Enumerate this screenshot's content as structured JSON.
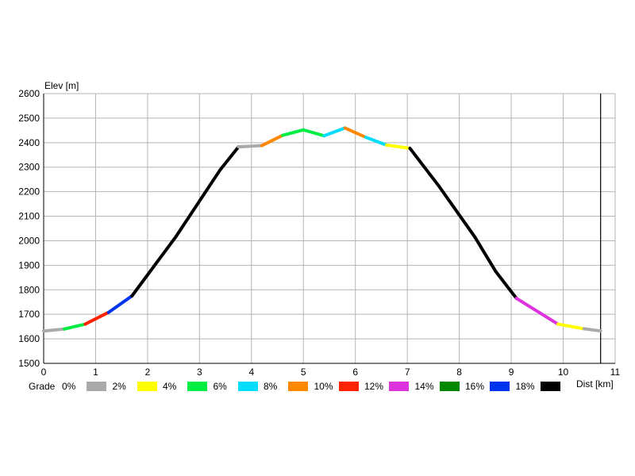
{
  "chart_data": {
    "type": "line",
    "ylabel": "Elev [m]",
    "xlabel": "Dist [km]",
    "xlim": [
      0,
      11
    ],
    "ylim": [
      1500,
      2600
    ],
    "xticks": [
      "0",
      "1",
      "2",
      "3",
      "4",
      "5",
      "6",
      "7",
      "8",
      "9",
      "10",
      "11"
    ],
    "yticks": [
      "1500",
      "1600",
      "1700",
      "1800",
      "1900",
      "2000",
      "2100",
      "2200",
      "2300",
      "2400",
      "2500",
      "2600"
    ],
    "grid": true,
    "marker_x": 10.72,
    "legend_title": "Grade",
    "grades": [
      {
        "label": "0%",
        "color": "#aaaaaa"
      },
      {
        "label": "2%",
        "color": "#ffff00"
      },
      {
        "label": "4%",
        "color": "#00ee44"
      },
      {
        "label": "6%",
        "color": "#00ddff"
      },
      {
        "label": "8%",
        "color": "#ff8800"
      },
      {
        "label": "10%",
        "color": "#ff2200"
      },
      {
        "label": "12%",
        "color": "#dd33dd"
      },
      {
        "label": "14%",
        "color": "#008800"
      },
      {
        "label": "16%",
        "color": "#0033ee"
      },
      {
        "label": "18%",
        "color": "#000000"
      }
    ],
    "segments": [
      {
        "x0": 0.0,
        "y0": 1632,
        "x1": 0.4,
        "y1": 1640,
        "color": "#aaaaaa"
      },
      {
        "x0": 0.4,
        "y0": 1640,
        "x1": 0.8,
        "y1": 1660,
        "color": "#00ee44"
      },
      {
        "x0": 0.8,
        "y0": 1660,
        "x1": 1.25,
        "y1": 1708,
        "color": "#ff2200"
      },
      {
        "x0": 1.25,
        "y0": 1708,
        "x1": 1.7,
        "y1": 1775,
        "color": "#0033ee"
      },
      {
        "x0": 1.7,
        "y0": 1775,
        "x1": 2.55,
        "y1": 2018,
        "color": "#000000"
      },
      {
        "x0": 2.55,
        "y0": 2018,
        "x1": 3.4,
        "y1": 2290,
        "color": "#000000"
      },
      {
        "x0": 3.4,
        "y0": 2290,
        "x1": 3.75,
        "y1": 2383,
        "color": "#000000"
      },
      {
        "x0": 3.75,
        "y0": 2383,
        "x1": 4.2,
        "y1": 2388,
        "color": "#aaaaaa"
      },
      {
        "x0": 4.2,
        "y0": 2388,
        "x1": 4.6,
        "y1": 2430,
        "color": "#ff8800"
      },
      {
        "x0": 4.6,
        "y0": 2430,
        "x1": 5.0,
        "y1": 2452,
        "color": "#00ee44"
      },
      {
        "x0": 5.0,
        "y0": 2452,
        "x1": 5.4,
        "y1": 2428,
        "color": "#00ee44"
      },
      {
        "x0": 5.4,
        "y0": 2428,
        "x1": 5.8,
        "y1": 2460,
        "color": "#00ddff"
      },
      {
        "x0": 5.8,
        "y0": 2460,
        "x1": 6.2,
        "y1": 2422,
        "color": "#ff8800"
      },
      {
        "x0": 6.2,
        "y0": 2422,
        "x1": 6.6,
        "y1": 2390,
        "color": "#00ddff"
      },
      {
        "x0": 6.6,
        "y0": 2390,
        "x1": 7.05,
        "y1": 2377,
        "color": "#ffff00"
      },
      {
        "x0": 7.05,
        "y0": 2377,
        "x1": 7.6,
        "y1": 2225,
        "color": "#000000"
      },
      {
        "x0": 7.6,
        "y0": 2225,
        "x1": 8.3,
        "y1": 2015,
        "color": "#000000"
      },
      {
        "x0": 8.3,
        "y0": 2015,
        "x1": 8.7,
        "y1": 1875,
        "color": "#000000"
      },
      {
        "x0": 8.7,
        "y0": 1875,
        "x1": 9.1,
        "y1": 1765,
        "color": "#000000"
      },
      {
        "x0": 9.1,
        "y0": 1765,
        "x1": 9.9,
        "y1": 1660,
        "color": "#dd33dd"
      },
      {
        "x0": 9.9,
        "y0": 1660,
        "x1": 10.4,
        "y1": 1641,
        "color": "#ffff00"
      },
      {
        "x0": 10.4,
        "y0": 1641,
        "x1": 10.72,
        "y1": 1632,
        "color": "#aaaaaa"
      }
    ]
  }
}
